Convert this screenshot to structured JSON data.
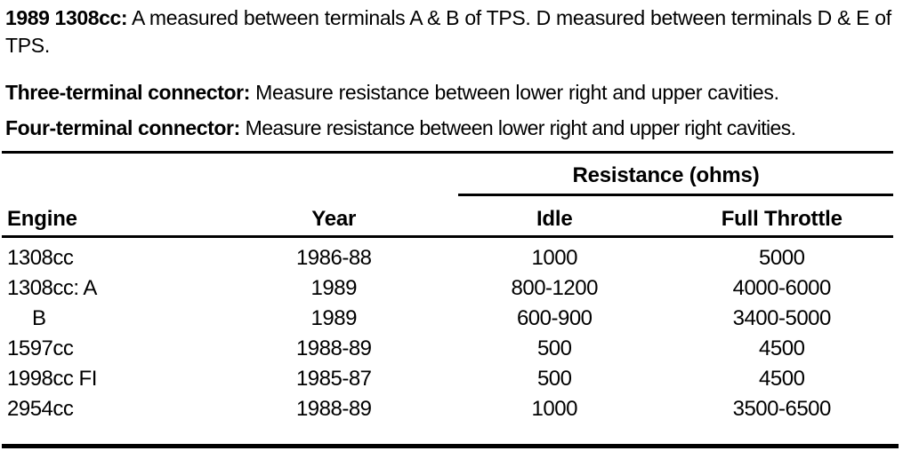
{
  "document": {
    "notes": [
      {
        "label": "1989 1308cc:",
        "text": " A measured between terminals A & B of TPS. D measured between terminals D & E of TPS."
      },
      {
        "label": "Three-terminal connector:",
        "text": " Measure resistance between lower right and upper cavities."
      },
      {
        "label": "Four-terminal connector:",
        "text": " Measure resistance between lower right and upper right cavities."
      }
    ]
  },
  "table": {
    "group_header": "Resistance (ohms)",
    "columns": [
      "Engine",
      "Year",
      "Idle",
      "Full Throttle"
    ],
    "rows": [
      {
        "engine": "1308cc",
        "year": "1986-88",
        "idle": "1000",
        "full_throttle": "5000",
        "indent": false
      },
      {
        "engine": "1308cc: A",
        "year": "1989",
        "idle": "800-1200",
        "full_throttle": "4000-6000",
        "indent": false
      },
      {
        "engine": "B",
        "year": "1989",
        "idle": "600-900",
        "full_throttle": "3400-5000",
        "indent": true
      },
      {
        "engine": "1597cc",
        "year": "1988-89",
        "idle": "500",
        "full_throttle": "4500",
        "indent": false
      },
      {
        "engine": "1998cc FI",
        "year": "1985-87",
        "idle": "500",
        "full_throttle": "4500",
        "indent": false
      },
      {
        "engine": "2954cc",
        "year": "1988-89",
        "idle": "1000",
        "full_throttle": "3500-6500",
        "indent": false
      }
    ]
  },
  "colors": {
    "ink": "#000000",
    "paper": "#ffffff"
  }
}
